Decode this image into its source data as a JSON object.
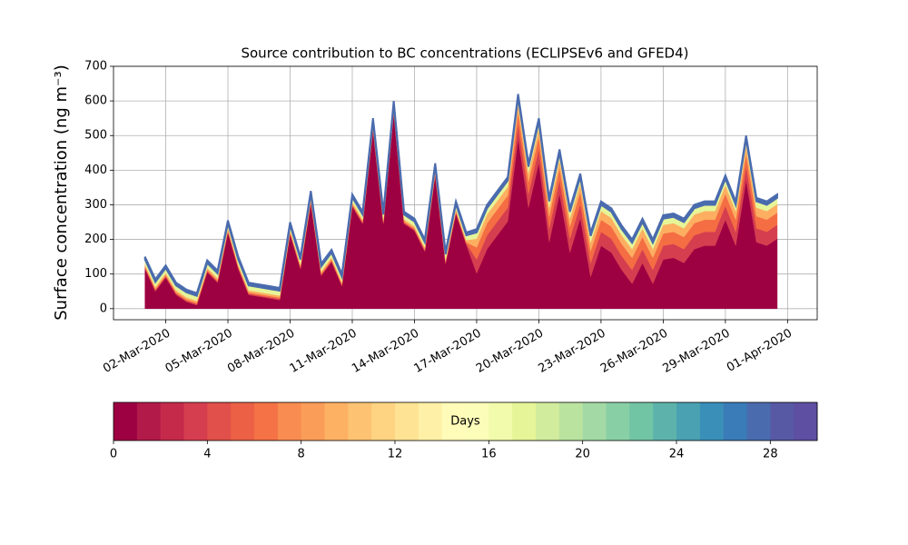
{
  "chart_data": {
    "type": "stackedarea",
    "title": "Source contribution to BC concentrations (ECLIPSEv6 and GFED4)",
    "y_label": "Surface concentration (ng m⁻³)",
    "x": [
      1,
      1.5,
      2,
      2.5,
      3,
      3.5,
      4,
      4.5,
      5,
      5.5,
      6,
      6.5,
      7,
      7.5,
      8,
      8.5,
      9,
      9.5,
      10,
      10.5,
      11,
      11.5,
      12,
      12.5,
      13,
      13.5,
      14,
      14.5,
      15,
      15.5,
      16,
      16.5,
      17,
      17.5,
      18,
      18.5,
      19,
      19.5,
      20,
      20.5,
      21,
      21.5,
      22,
      22.5,
      23,
      23.5,
      24,
      24.5,
      25,
      25.5,
      26,
      26.5,
      27,
      27.5,
      28,
      28.5,
      29,
      29.5,
      30,
      30.5,
      31,
      31.5
    ],
    "xlim": [
      -0.52,
      33.43
    ],
    "xticks": [
      {
        "value": 2,
        "label": "02-Mar-2020"
      },
      {
        "value": 5,
        "label": "05-Mar-2020"
      },
      {
        "value": 8,
        "label": "08-Mar-2020"
      },
      {
        "value": 11,
        "label": "11-Mar-2020"
      },
      {
        "value": 14,
        "label": "14-Mar-2020"
      },
      {
        "value": 17,
        "label": "17-Mar-2020"
      },
      {
        "value": 20,
        "label": "20-Mar-2020"
      },
      {
        "value": 23,
        "label": "23-Mar-2020"
      },
      {
        "value": 26,
        "label": "26-Mar-2020"
      },
      {
        "value": 29,
        "label": "29-Mar-2020"
      },
      {
        "value": 32,
        "label": "01-Apr-2020"
      }
    ],
    "ylim": [
      -32,
      700
    ],
    "yticks": [
      0,
      100,
      200,
      300,
      400,
      500,
      600,
      700
    ],
    "grid": true,
    "series": [
      {
        "color": "#9e0142",
        "values": [
          115,
          50,
          90,
          40,
          20,
          10,
          105,
          75,
          220,
          115,
          40,
          35,
          30,
          25,
          215,
          115,
          305,
          95,
          135,
          65,
          295,
          245,
          515,
          245,
          565,
          245,
          225,
          165,
          385,
          130,
          275,
          185,
          102,
          172,
          212,
          252,
          492,
          292,
          422,
          192,
          332,
          162,
          262,
          92,
          182,
          162,
          112,
          72,
          132,
          72,
          142,
          147,
          132,
          172,
          182,
          182,
          257,
          182,
          372,
          192,
          182,
          202
        ]
      },
      {
        "color": "#d53e4f",
        "values": [
          3,
          3,
          3,
          3,
          3,
          3,
          3,
          3,
          3,
          3,
          3,
          3,
          3,
          3,
          3,
          3,
          3,
          3,
          3,
          3,
          3,
          3,
          3,
          3,
          3,
          3,
          3,
          3,
          3,
          3,
          3,
          3,
          40,
          40,
          40,
          40,
          40,
          40,
          40,
          40,
          40,
          40,
          40,
          40,
          40,
          40,
          40,
          40,
          40,
          40,
          40,
          40,
          40,
          40,
          40,
          40,
          40,
          40,
          40,
          40,
          40,
          40
        ]
      },
      {
        "color": "#f46d43",
        "values": [
          4,
          4,
          4,
          4,
          4,
          4,
          4,
          4,
          4,
          4,
          4,
          4,
          4,
          4,
          4,
          4,
          4,
          4,
          4,
          4,
          4,
          4,
          4,
          4,
          4,
          4,
          4,
          4,
          4,
          4,
          4,
          4,
          35,
          35,
          35,
          35,
          35,
          35,
          35,
          35,
          35,
          35,
          35,
          35,
          35,
          35,
          35,
          35,
          35,
          35,
          35,
          35,
          35,
          35,
          35,
          35,
          35,
          35,
          35,
          35,
          35,
          35
        ]
      },
      {
        "color": "#fdae61",
        "values": [
          6,
          6,
          6,
          6,
          6,
          6,
          6,
          6,
          6,
          6,
          6,
          6,
          6,
          6,
          6,
          6,
          6,
          6,
          6,
          6,
          6,
          6,
          6,
          6,
          6,
          6,
          6,
          6,
          6,
          6,
          6,
          6,
          25,
          25,
          25,
          25,
          25,
          25,
          25,
          25,
          25,
          25,
          25,
          25,
          25,
          25,
          25,
          25,
          25,
          25,
          25,
          25,
          25,
          25,
          25,
          25,
          25,
          25,
          25,
          25,
          25,
          25
        ]
      },
      {
        "color": "#e6f598",
        "values": [
          14,
          14,
          14,
          14,
          14,
          14,
          14,
          14,
          14,
          14,
          14,
          14,
          14,
          14,
          14,
          14,
          14,
          14,
          14,
          14,
          14,
          14,
          14,
          14,
          14,
          14,
          14,
          14,
          14,
          14,
          14,
          14,
          18,
          18,
          18,
          18,
          18,
          18,
          18,
          18,
          18,
          18,
          18,
          18,
          18,
          18,
          18,
          18,
          18,
          18,
          18,
          18,
          18,
          18,
          18,
          18,
          18,
          18,
          18,
          18,
          18,
          18
        ]
      },
      {
        "color": "#4a6bae",
        "values": [
          8,
          8,
          8,
          8,
          8,
          8,
          8,
          8,
          8,
          8,
          8,
          8,
          8,
          8,
          8,
          8,
          8,
          8,
          8,
          8,
          8,
          8,
          8,
          8,
          8,
          8,
          8,
          8,
          8,
          8,
          8,
          8,
          10,
          10,
          10,
          10,
          10,
          10,
          10,
          10,
          10,
          10,
          10,
          10,
          10,
          10,
          10,
          10,
          10,
          10,
          10,
          10,
          10,
          10,
          10,
          10,
          10,
          10,
          10,
          10,
          10,
          10
        ]
      }
    ],
    "colorbar": {
      "label": "Days",
      "lim": [
        0,
        30
      ],
      "ticks": [
        0,
        4,
        8,
        12,
        16,
        20,
        24,
        28
      ],
      "colors": [
        "#9e0142",
        "#b21a4a",
        "#c52a4b",
        "#d53e4f",
        "#e1504a",
        "#ec6046",
        "#f47245",
        "#f88c51",
        "#fa9d58",
        "#fdb163",
        "#fdc373",
        "#fed382",
        "#fee394",
        "#fef0a6",
        "#fffbb8",
        "#fbfdb9",
        "#f2faab",
        "#e6f598",
        "#d1ec9c",
        "#bbe3a0",
        "#a2d9a4",
        "#89cfa5",
        "#71c5a5",
        "#5db3ab",
        "#4aa1b1",
        "#3a8fb8",
        "#3a7cb8",
        "#4a6bae",
        "#5859a5",
        "#5e4fa2"
      ]
    }
  }
}
